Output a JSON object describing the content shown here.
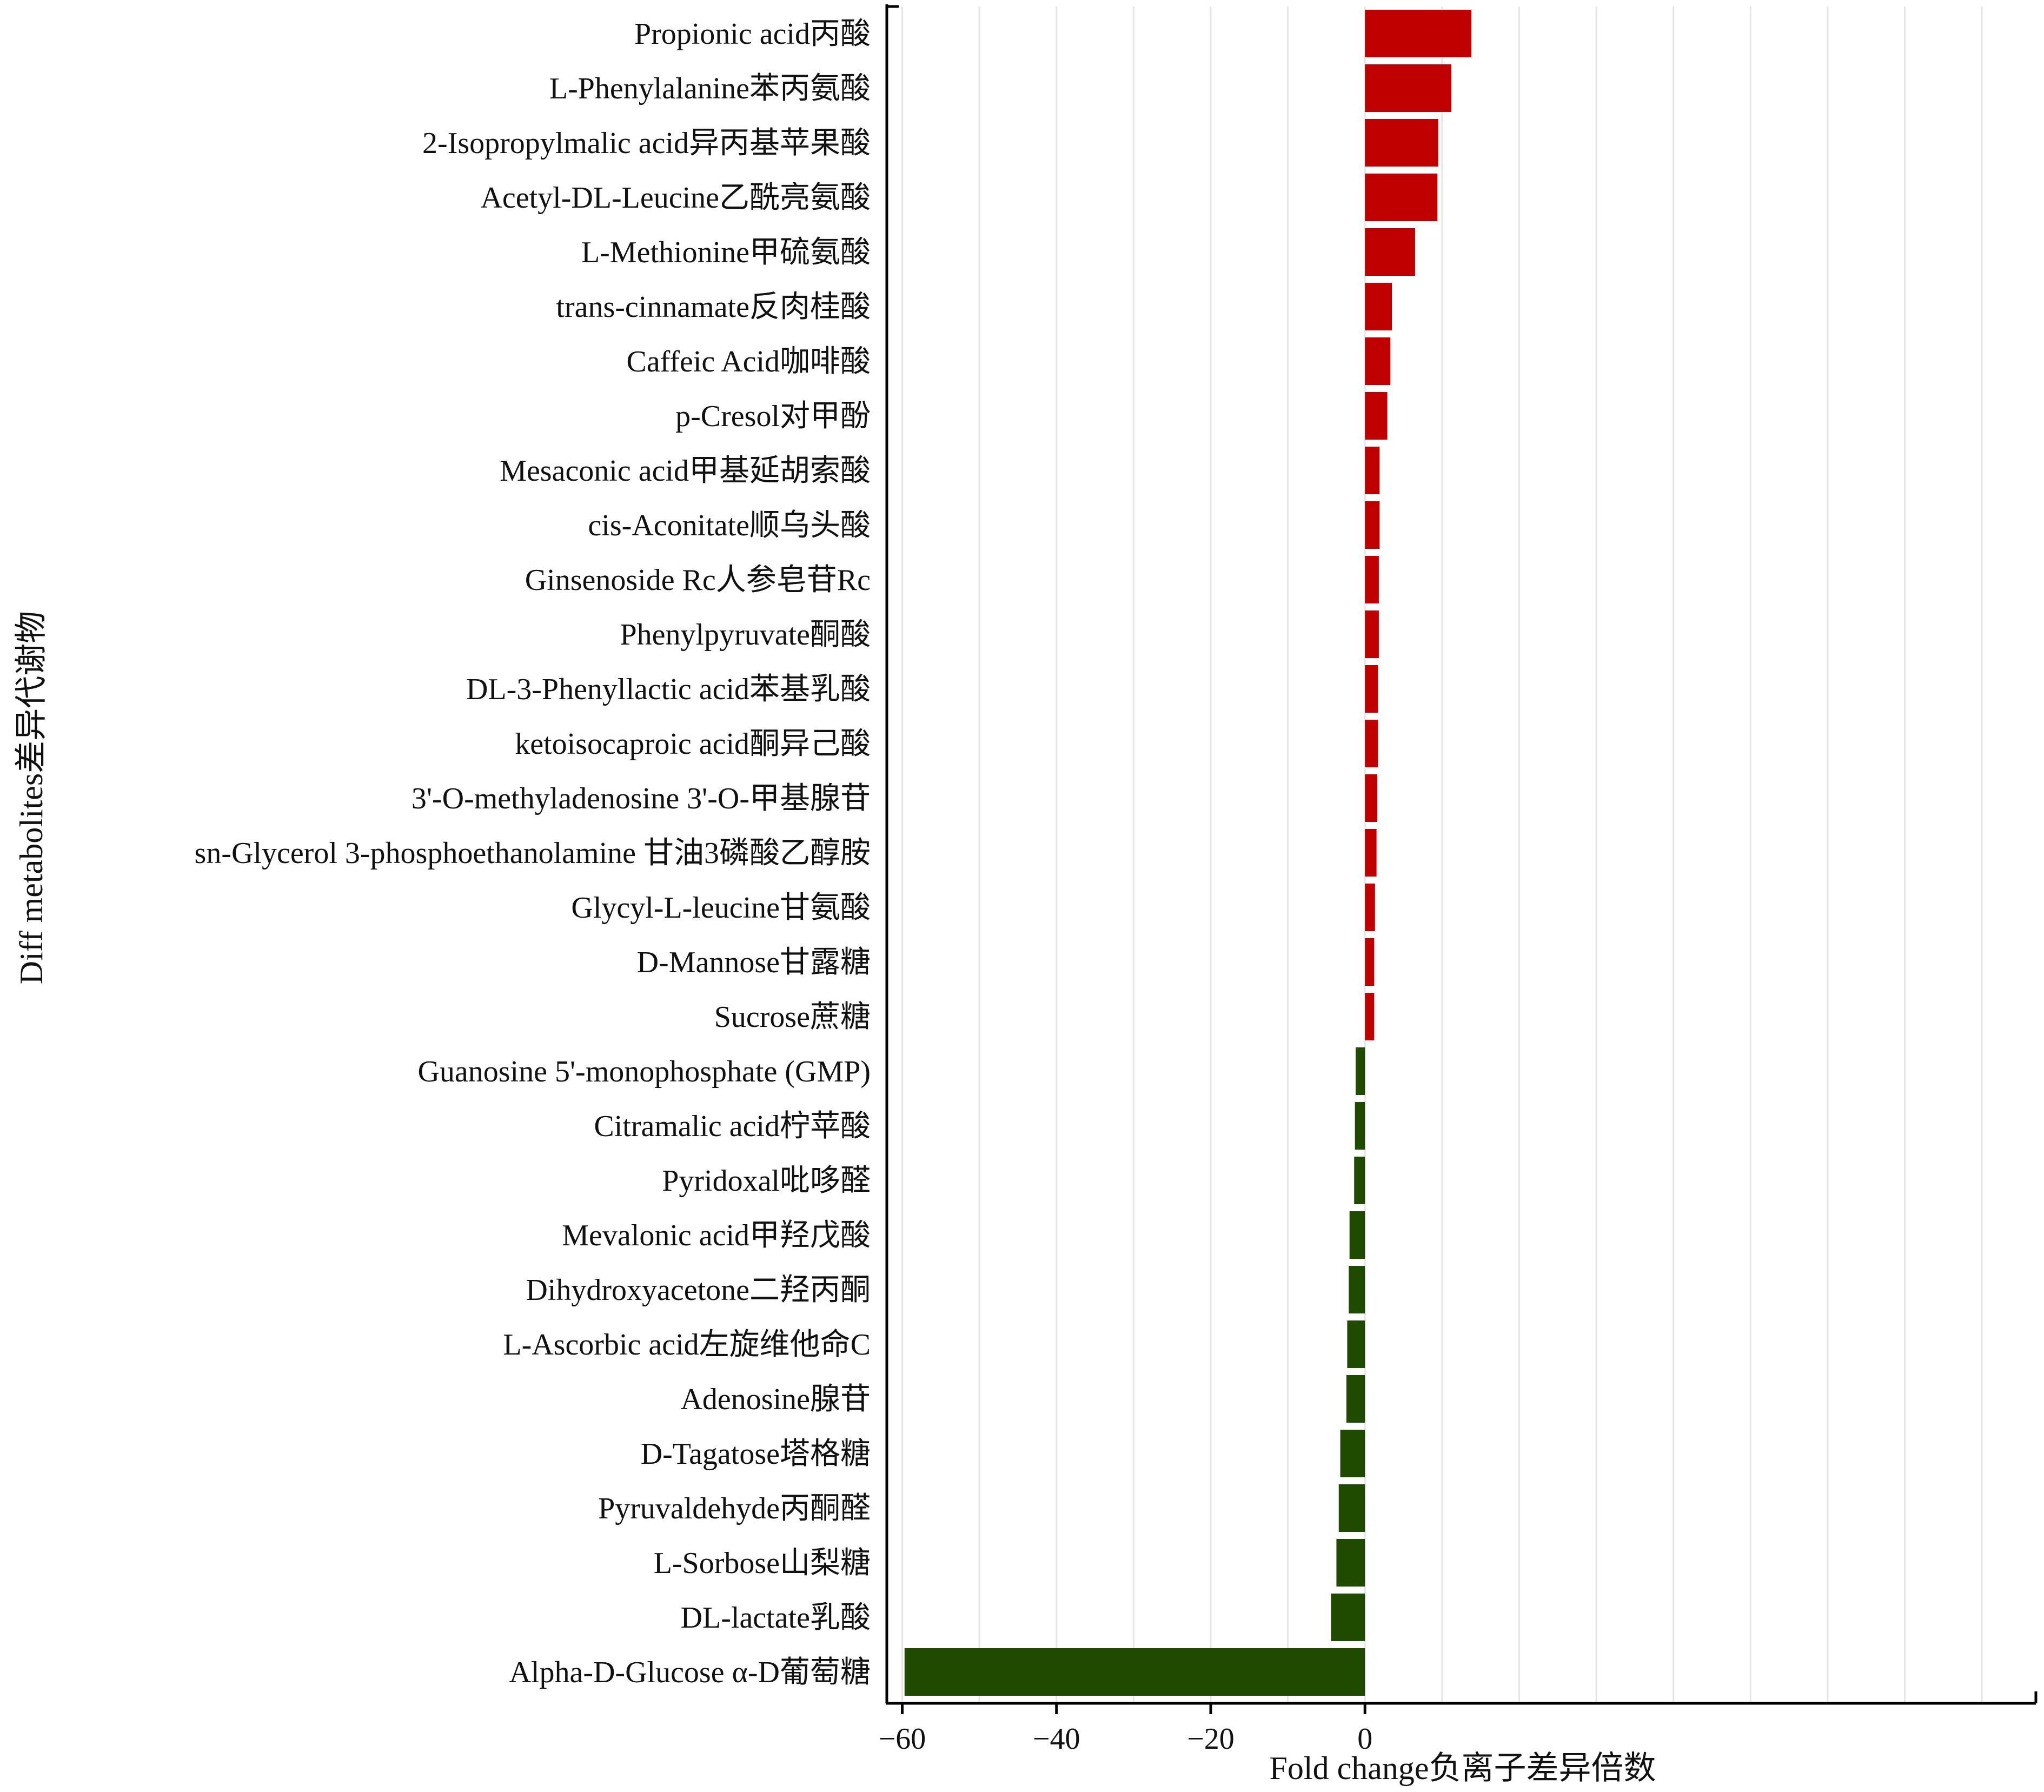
{
  "chart_data": {
    "type": "bar",
    "orientation": "horizontal",
    "xlabel": "Fold change负离子差异倍数",
    "ylabel": "Diff metabolites差异代谢物",
    "xlim": [
      -62,
      87
    ],
    "xticks": [
      -60,
      -40,
      -20,
      0
    ],
    "xtick_labels": [
      "−60",
      "−40",
      "−20",
      "0"
    ],
    "grid": "vertical",
    "categories": [
      "Propionic acid丙酸",
      "L-Phenylalanine苯丙氨酸",
      "2-Isopropylmalic acid异丙基苹果酸",
      "Acetyl-DL-Leucine乙酰亮氨酸",
      "L-Methionine甲硫氨酸",
      "trans-cinnamate反肉桂酸",
      "Caffeic Acid咖啡酸",
      "p-Cresol对甲酚",
      "Mesaconic acid甲基延胡索酸",
      "cis-Aconitate顺乌头酸",
      "Ginsenoside Rc人参皂苷Rc",
      "Phenylpyruvate酮酸",
      "DL-3-Phenyllactic acid苯基乳酸",
      "ketoisocaproic acid酮异己酸",
      "3'-O-methyladenosine 3'-O-甲基腺苷",
      "sn-Glycerol 3-phosphoethanolamine 甘油3磷酸乙醇胺",
      "Glycyl-L-leucine甘氨酸",
      "D-Mannose甘露糖",
      "Sucrose蔗糖",
      "Guanosine 5'-monophosphate (GMP)",
      "Citramalic acid柠苹酸",
      "Pyridoxal吡哆醛",
      "Mevalonic acid甲羟戊酸",
      "Dihydroxyacetone二羟丙酮",
      "L-Ascorbic acid左旋维他命C",
      "Adenosine腺苷",
      "D-Tagatose塔格糖",
      "Pyruvaldehyde丙酮醛",
      "L-Sorbose山梨糖",
      "DL-lactate乳酸",
      "Alpha-D-Glucose α-D葡萄糖"
    ],
    "values": [
      13.8,
      11.2,
      9.5,
      9.4,
      6.5,
      3.5,
      3.3,
      2.9,
      1.9,
      1.9,
      1.8,
      1.8,
      1.7,
      1.7,
      1.6,
      1.5,
      1.3,
      1.2,
      1.2,
      -1.2,
      -1.3,
      -1.4,
      -2.0,
      -2.1,
      -2.3,
      -2.4,
      -3.2,
      -3.4,
      -3.7,
      -4.4,
      -59.7
    ],
    "colors": {
      "positive": "#c00000",
      "negative": "#1f4a00"
    }
  }
}
